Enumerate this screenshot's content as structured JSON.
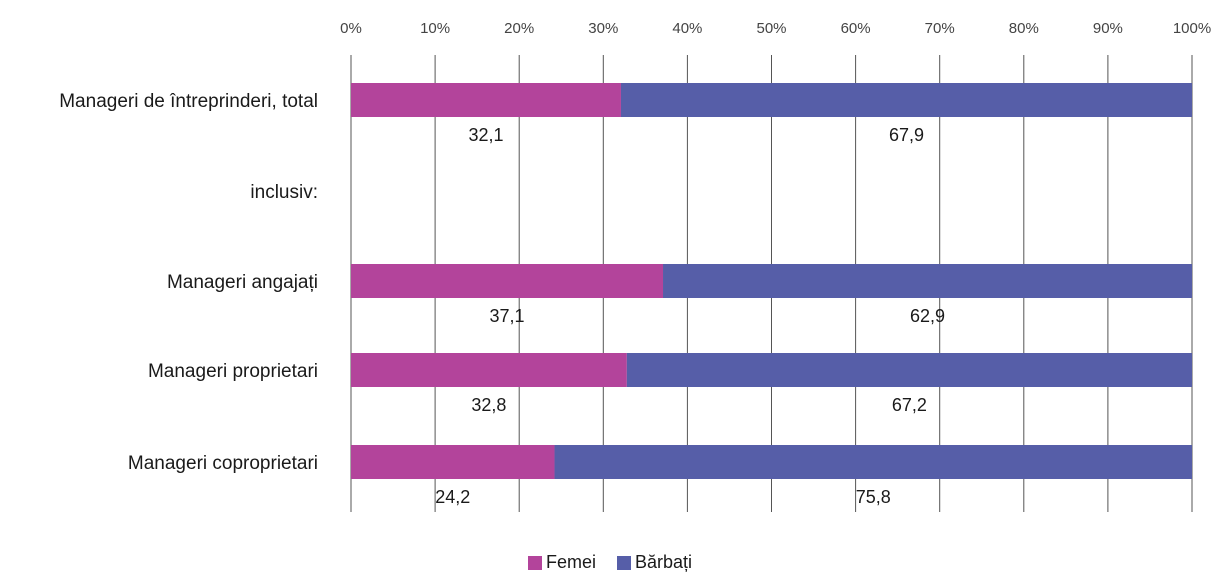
{
  "chart_data": {
    "type": "bar",
    "orientation": "horizontal",
    "stacked": true,
    "normalized": true,
    "title": "",
    "xlabel": "",
    "ylabel": "",
    "xlim": [
      0,
      100
    ],
    "ticks": [
      "0%",
      "10%",
      "20%",
      "30%",
      "40%",
      "50%",
      "60%",
      "70%",
      "80%",
      "90%",
      "100%"
    ],
    "grid": "vertical",
    "legend_position": "bottom",
    "categories": [
      "Manageri de întreprinderi, total",
      "inclusiv:",
      "Manageri angajați",
      "Manageri proprietari",
      "Manageri coproprietari"
    ],
    "series": [
      {
        "name": "Femei",
        "color": "#B3449B",
        "values": [
          32.1,
          null,
          37.1,
          32.8,
          24.2
        ],
        "labels": [
          "32,1",
          "",
          "37,1",
          "32,8",
          "24,2"
        ]
      },
      {
        "name": "Bărbați",
        "color": "#565EA8",
        "values": [
          67.9,
          null,
          62.9,
          67.2,
          75.8
        ],
        "labels": [
          "67,9",
          "",
          "62,9",
          "67,2",
          "75,8"
        ]
      }
    ]
  }
}
